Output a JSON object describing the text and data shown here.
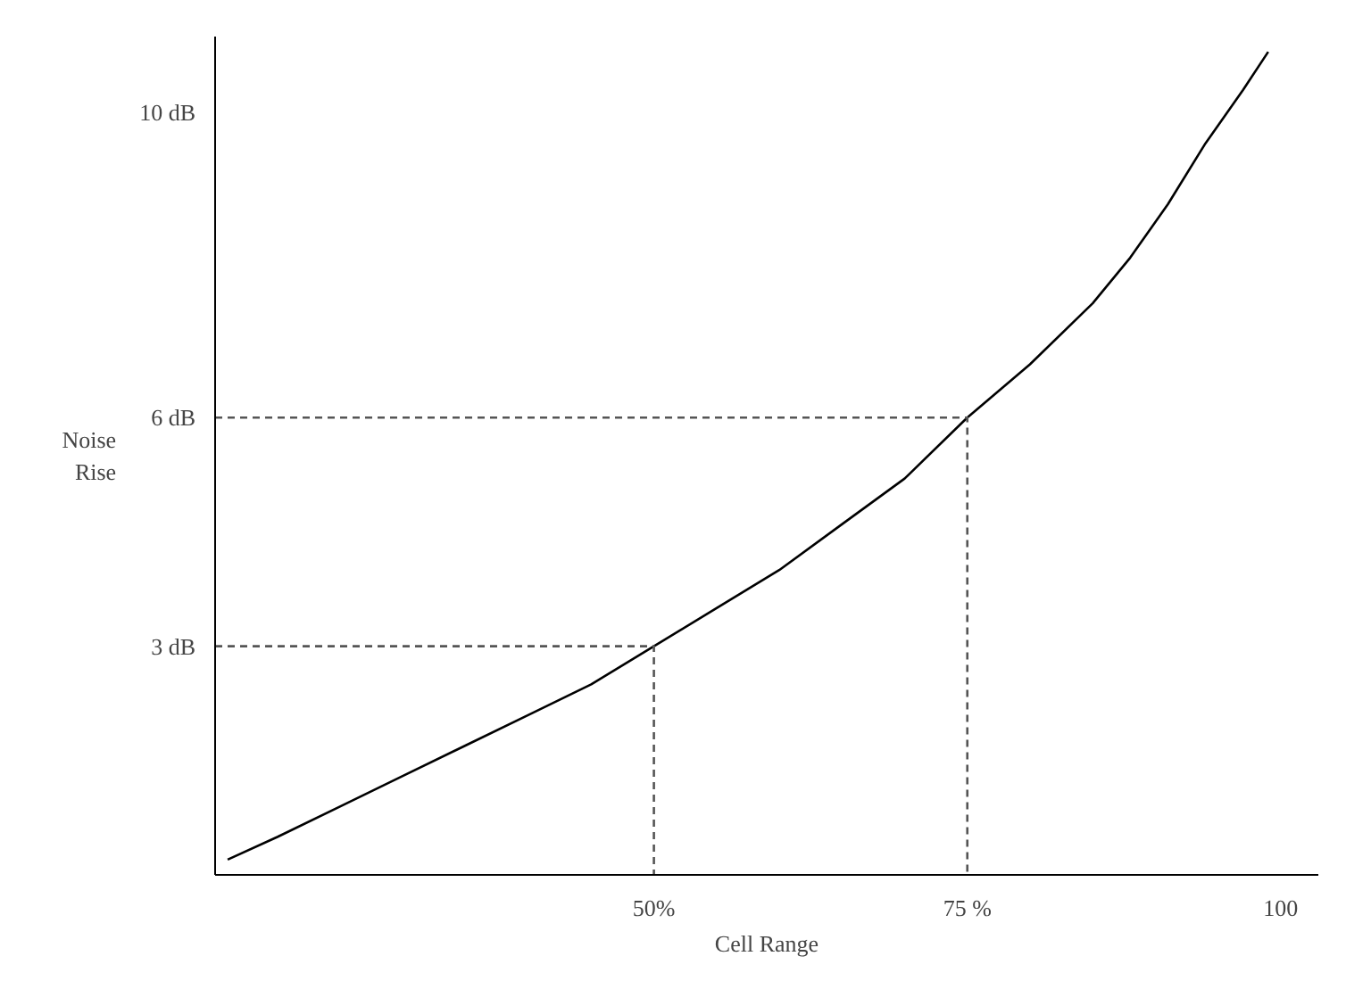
{
  "chart_data": {
    "type": "line",
    "xlabel": "Cell Range",
    "ylabel": "Noise\nRise",
    "xlim": [
      15,
      103
    ],
    "ylim": [
      0,
      11
    ],
    "xticks": [
      {
        "value": 50,
        "label": "50%"
      },
      {
        "value": 75,
        "label": "75 %"
      },
      100
    ],
    "yticks": [
      {
        "value": 3,
        "label": "3 dB"
      },
      {
        "value": 6,
        "label": "6 dB"
      },
      {
        "value": 10,
        "label": "10 dB"
      }
    ],
    "grid": false,
    "marker": "none",
    "series": [
      {
        "color": "#000000",
        "line_style": "solid",
        "x": [
          16,
          20,
          25,
          30,
          35,
          40,
          45,
          50,
          55,
          60,
          65,
          70,
          75,
          80,
          85,
          88,
          91,
          94,
          97,
          99
        ],
        "values": [
          0.2,
          0.5,
          0.9,
          1.3,
          1.7,
          2.1,
          2.5,
          3,
          3.5,
          4,
          4.6,
          5.2,
          6,
          6.7,
          7.5,
          8.1,
          8.8,
          9.6,
          10.3,
          10.8
        ]
      },
      {
        "color": "#555555",
        "line_style": "dashed",
        "x": [
          15,
          50,
          50
        ],
        "values": [
          3,
          3,
          0
        ]
      },
      {
        "color": "#555555",
        "line_style": "dashed",
        "x": [
          15,
          75,
          75
        ],
        "values": [
          6,
          6,
          0
        ]
      }
    ]
  }
}
